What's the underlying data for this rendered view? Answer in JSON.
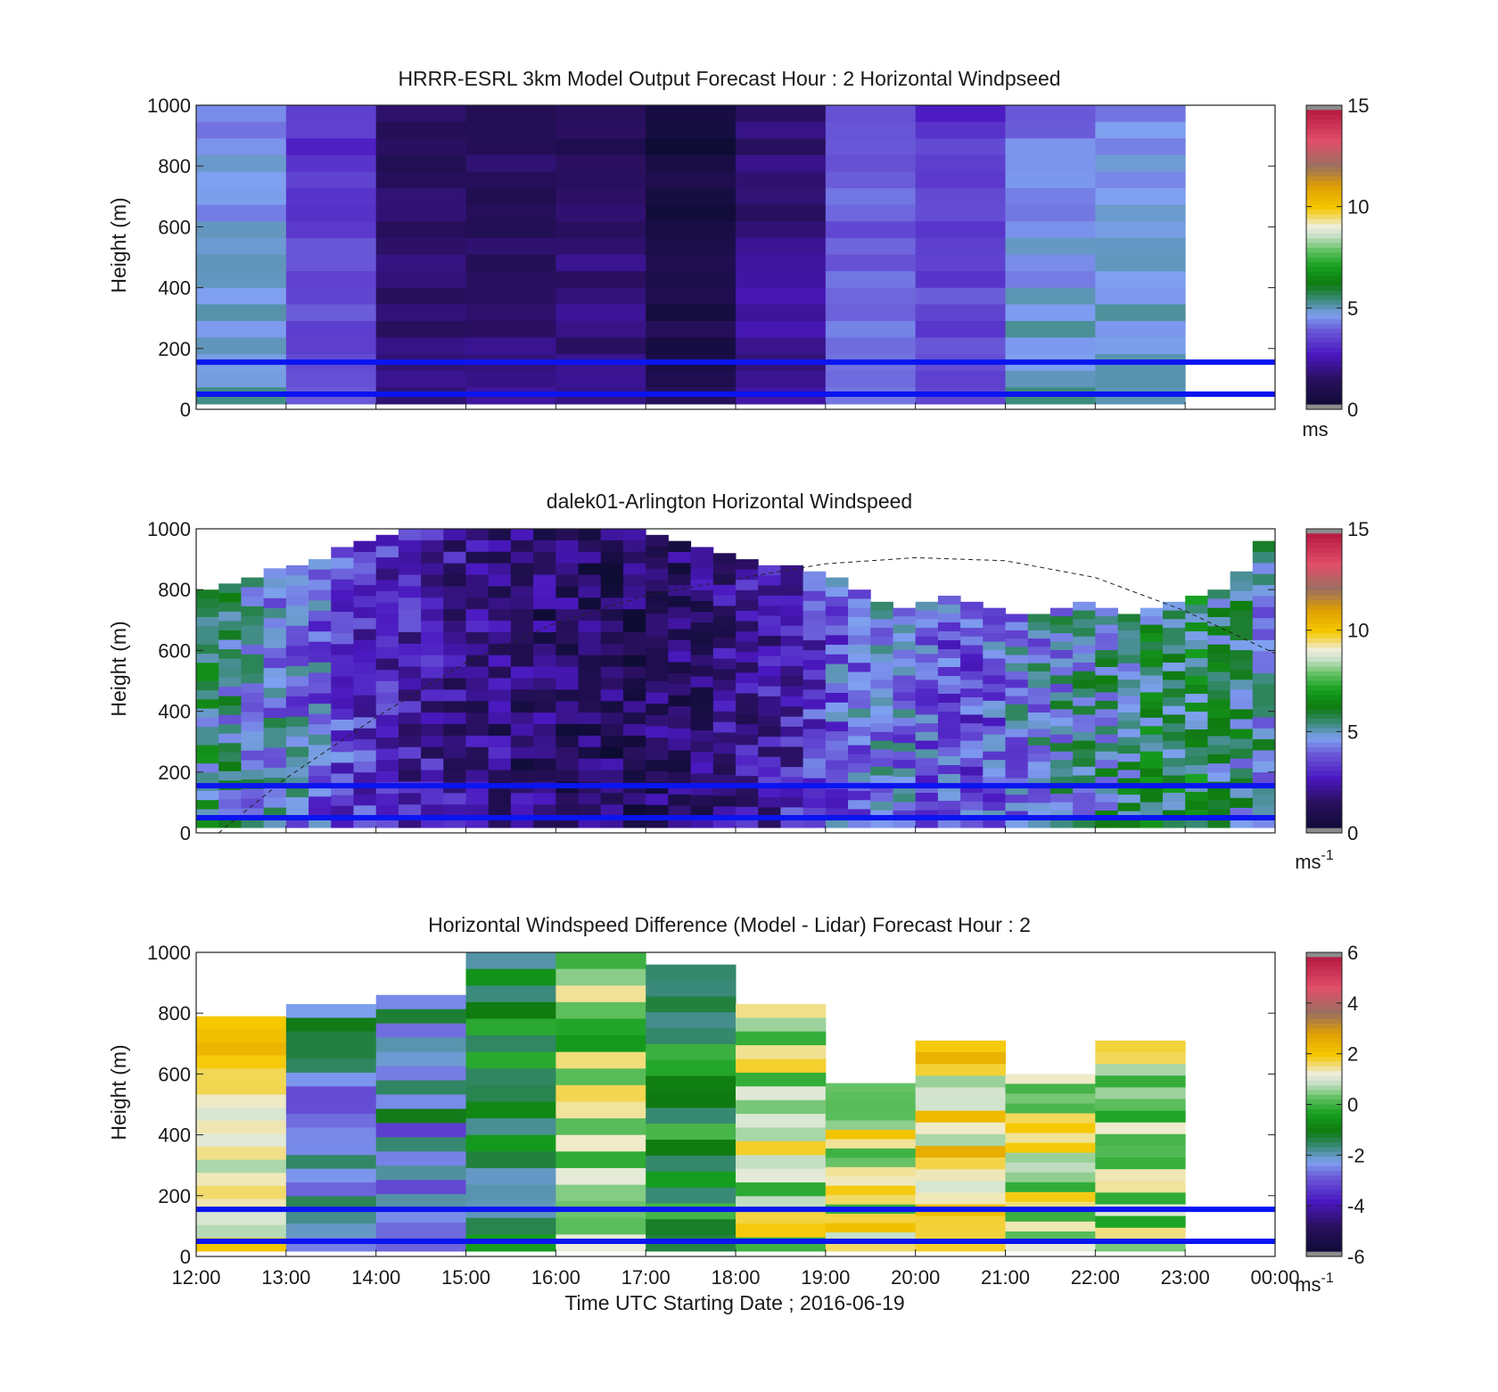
{
  "chart_data": [
    {
      "type": "heatmap",
      "title": "HRRR-ESRL 3km Model Output   Forecast Hour : 2 Horizontal Windpseed",
      "ylabel": "Height (m)",
      "ylim": [
        0,
        1000
      ],
      "yticks": [
        "0",
        "200",
        "400",
        "600",
        "800",
        "1000"
      ],
      "x_domain": [
        "12:00",
        "00:00"
      ],
      "colorbar": {
        "min": 0,
        "max": 15,
        "ticks": [
          "0",
          "5",
          "10",
          "15"
        ],
        "unit": "ms",
        "unit_sup": ""
      },
      "reference_lines_m": [
        50,
        155
      ],
      "columns": [
        {
          "hour": "12:00",
          "top": 1000,
          "value": 4.7
        },
        {
          "hour": "13:00",
          "top": 1000,
          "value": 3.5
        },
        {
          "hour": "14:00",
          "top": 1000,
          "value": 1.6
        },
        {
          "hour": "15:00",
          "top": 1000,
          "value": 1.6
        },
        {
          "hour": "16:00",
          "top": 1000,
          "value": 1.7
        },
        {
          "hour": "17:00",
          "top": 1000,
          "value": 0.7
        },
        {
          "hour": "18:00",
          "top": 1000,
          "value": 2.0
        },
        {
          "hour": "19:00",
          "top": 1000,
          "value": 4.0
        },
        {
          "hour": "20:00",
          "top": 1000,
          "value": 3.5
        },
        {
          "hour": "21:00",
          "top": 1000,
          "value": 4.6
        },
        {
          "hour": "22:00",
          "top": 1000,
          "value": 4.8
        }
      ]
    },
    {
      "type": "heatmap",
      "title": "dalek01-Arlington  Horizontal Windspeed",
      "ylabel": "Height (m)",
      "ylim": [
        0,
        1000
      ],
      "yticks": [
        "0",
        "200",
        "400",
        "600",
        "800",
        "1000"
      ],
      "x_domain": [
        "12:00",
        "00:00"
      ],
      "colorbar": {
        "min": 0,
        "max": 15,
        "ticks": [
          "0",
          "5",
          "10",
          "15"
        ],
        "unit": "ms",
        "unit_sup": "-1"
      },
      "reference_lines_m": [
        50,
        155
      ],
      "columns": [
        {
          "hour": "12:00",
          "top": 800,
          "value": 5.5
        },
        {
          "hour": "12:15",
          "top": 820,
          "value": 5.0
        },
        {
          "hour": "12:30",
          "top": 840,
          "value": 4.8
        },
        {
          "hour": "12:45",
          "top": 870,
          "value": 4.5
        },
        {
          "hour": "13:00",
          "top": 880,
          "value": 4.3
        },
        {
          "hour": "13:15",
          "top": 900,
          "value": 4.0
        },
        {
          "hour": "13:30",
          "top": 940,
          "value": 3.6
        },
        {
          "hour": "13:45",
          "top": 960,
          "value": 3.2
        },
        {
          "hour": "14:00",
          "top": 980,
          "value": 2.9
        },
        {
          "hour": "14:15",
          "top": 1000,
          "value": 2.6
        },
        {
          "hour": "14:30",
          "top": 1000,
          "value": 2.4
        },
        {
          "hour": "14:45",
          "top": 1000,
          "value": 2.2
        },
        {
          "hour": "15:00",
          "top": 1000,
          "value": 2.0
        },
        {
          "hour": "15:15",
          "top": 1000,
          "value": 1.8
        },
        {
          "hour": "15:30",
          "top": 1000,
          "value": 1.6
        },
        {
          "hour": "15:45",
          "top": 1000,
          "value": 1.5
        },
        {
          "hour": "16:00",
          "top": 1000,
          "value": 1.4
        },
        {
          "hour": "16:15",
          "top": 1000,
          "value": 1.3
        },
        {
          "hour": "16:30",
          "top": 1000,
          "value": 1.3
        },
        {
          "hour": "16:45",
          "top": 1000,
          "value": 1.4
        },
        {
          "hour": "17:00",
          "top": 980,
          "value": 1.5
        },
        {
          "hour": "17:15",
          "top": 960,
          "value": 1.6
        },
        {
          "hour": "17:30",
          "top": 940,
          "value": 1.8
        },
        {
          "hour": "17:45",
          "top": 920,
          "value": 2.0
        },
        {
          "hour": "18:00",
          "top": 900,
          "value": 2.2
        },
        {
          "hour": "18:15",
          "top": 880,
          "value": 2.5
        },
        {
          "hour": "18:30",
          "top": 880,
          "value": 2.8
        },
        {
          "hour": "18:45",
          "top": 860,
          "value": 3.2
        },
        {
          "hour": "19:00",
          "top": 840,
          "value": 3.8
        },
        {
          "hour": "19:15",
          "top": 800,
          "value": 4.2
        },
        {
          "hour": "19:30",
          "top": 760,
          "value": 4.4
        },
        {
          "hour": "19:45",
          "top": 740,
          "value": 4.3
        },
        {
          "hour": "20:00",
          "top": 760,
          "value": 4.0
        },
        {
          "hour": "20:15",
          "top": 780,
          "value": 3.7
        },
        {
          "hour": "20:30",
          "top": 760,
          "value": 3.6
        },
        {
          "hour": "20:45",
          "top": 740,
          "value": 3.8
        },
        {
          "hour": "21:00",
          "top": 720,
          "value": 4.4
        },
        {
          "hour": "21:15",
          "top": 720,
          "value": 4.6
        },
        {
          "hour": "21:30",
          "top": 740,
          "value": 4.8
        },
        {
          "hour": "21:45",
          "top": 760,
          "value": 5.0
        },
        {
          "hour": "22:00",
          "top": 740,
          "value": 5.2
        },
        {
          "hour": "22:15",
          "top": 720,
          "value": 5.4
        },
        {
          "hour": "22:30",
          "top": 740,
          "value": 5.6
        },
        {
          "hour": "22:45",
          "top": 760,
          "value": 5.7
        },
        {
          "hour": "23:00",
          "top": 780,
          "value": 5.8
        },
        {
          "hour": "23:15",
          "top": 800,
          "value": 5.6
        },
        {
          "hour": "23:30",
          "top": 860,
          "value": 5.2
        },
        {
          "hour": "23:45",
          "top": 960,
          "value": 4.8
        }
      ],
      "dashed_curve": {
        "style": "dashed",
        "points": [
          {
            "t": 12.25,
            "h": 0
          },
          {
            "t": 13.0,
            "h": 180
          },
          {
            "t": 14.0,
            "h": 380
          },
          {
            "t": 15.0,
            "h": 560
          },
          {
            "t": 16.0,
            "h": 690
          },
          {
            "t": 17.0,
            "h": 780
          },
          {
            "t": 18.0,
            "h": 835
          },
          {
            "t": 19.0,
            "h": 885
          },
          {
            "t": 20.0,
            "h": 905
          },
          {
            "t": 21.0,
            "h": 895
          },
          {
            "t": 22.0,
            "h": 840
          },
          {
            "t": 23.0,
            "h": 730
          },
          {
            "t": 24.0,
            "h": 590
          }
        ]
      }
    },
    {
      "type": "heatmap",
      "title": "Horizontal Windspeed Difference (Model - Lidar) Forecast Hour : 2",
      "ylabel": "Height (m)",
      "xlabel": "Time UTC  Starting Date ; 2016-06-19",
      "ylim": [
        0,
        1000
      ],
      "yticks": [
        "0",
        "200",
        "400",
        "600",
        "800",
        "1000"
      ],
      "xticks": [
        "12:00",
        "13:00",
        "14:00",
        "15:00",
        "16:00",
        "17:00",
        "18:00",
        "19:00",
        "20:00",
        "21:00",
        "22:00",
        "23:00",
        "00:00"
      ],
      "colorbar": {
        "min": -6,
        "max": 6,
        "ticks": [
          "-6",
          "-4",
          "-2",
          "0",
          "2",
          "4",
          "6"
        ],
        "unit": "ms",
        "unit_sup": "-1"
      },
      "reference_lines_m": [
        50,
        155
      ],
      "columns": [
        {
          "hour": "12:00",
          "top": 790,
          "value": 1.2
        },
        {
          "hour": "13:00",
          "top": 830,
          "value": -2.0
        },
        {
          "hour": "14:00",
          "top": 860,
          "value": -2.2
        },
        {
          "hour": "15:00",
          "top": 1000,
          "value": -1.2
        },
        {
          "hour": "16:00",
          "top": 1000,
          "value": 0.6
        },
        {
          "hour": "17:00",
          "top": 960,
          "value": -0.8
        },
        {
          "hour": "18:00",
          "top": 830,
          "value": 0.9
        },
        {
          "hour": "19:00",
          "top": 570,
          "value": 1.0
        },
        {
          "hour": "20:00",
          "top": 710,
          "value": 1.4
        },
        {
          "hour": "21:00",
          "top": 600,
          "value": 0.9
        },
        {
          "hour": "22:00",
          "top": 710,
          "value": 0.7
        }
      ]
    }
  ]
}
